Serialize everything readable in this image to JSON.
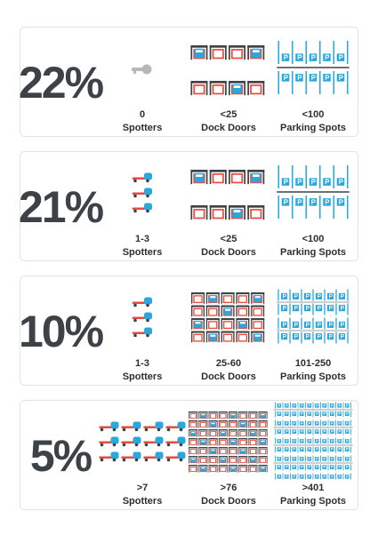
{
  "cards": [
    {
      "percent": "22%",
      "spotters": {
        "value": "0",
        "label": "Spotters"
      },
      "dock_doors": {
        "value": "<25",
        "label": "Dock Doors"
      },
      "parking": {
        "value": "<100",
        "label": "Parking Spots"
      }
    },
    {
      "percent": "21%",
      "spotters": {
        "value": "1-3",
        "label": "Spotters"
      },
      "dock_doors": {
        "value": "<25",
        "label": "Dock Doors"
      },
      "parking": {
        "value": "<100",
        "label": "Parking Spots"
      }
    },
    {
      "percent": "10%",
      "spotters": {
        "value": "1-3",
        "label": "Spotters"
      },
      "dock_doors": {
        "value": "25-60",
        "label": "Dock Doors"
      },
      "parking": {
        "value": "101-250",
        "label": "Parking Spots"
      }
    },
    {
      "percent": "5%",
      "spotters": {
        "value": ">7",
        "label": "Spotters"
      },
      "dock_doors": {
        "value": ">76",
        "label": "Dock Doors"
      },
      "parking": {
        "value": ">401",
        "label": "Parking Spots"
      }
    }
  ]
}
